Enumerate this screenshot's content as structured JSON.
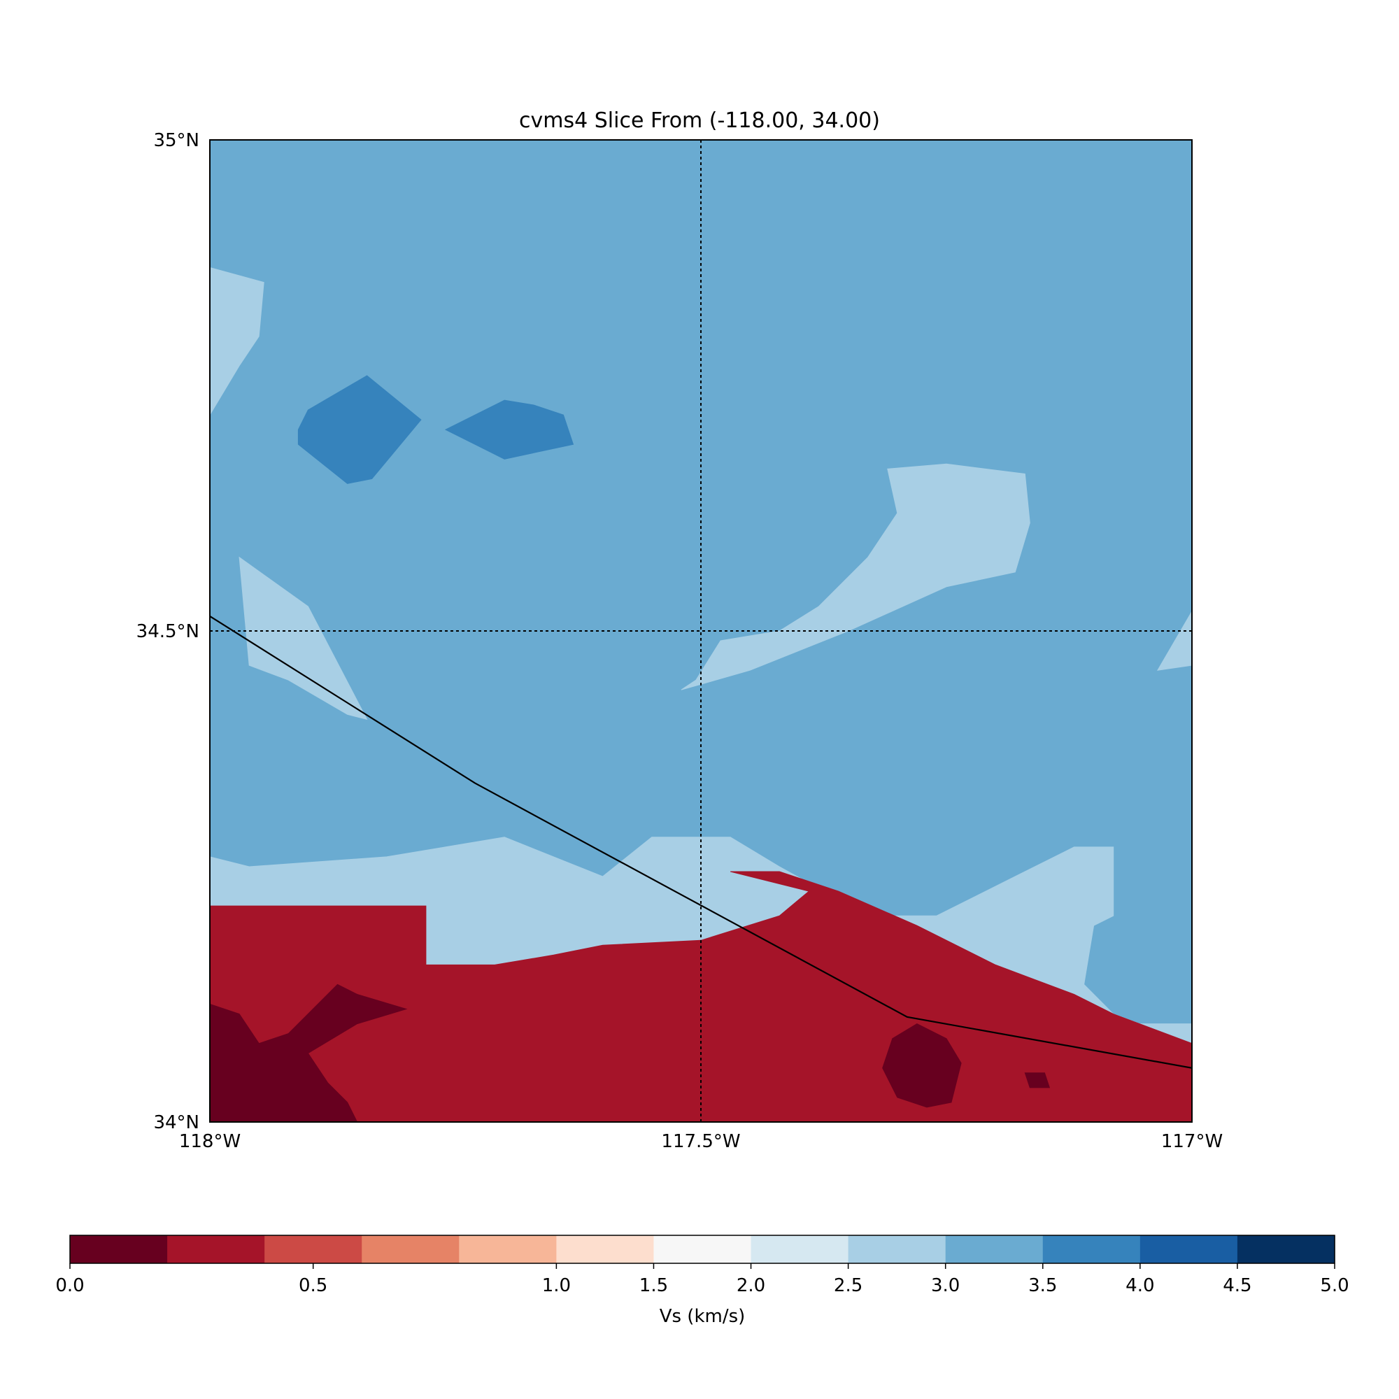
{
  "chart_data": {
    "type": "heatmap",
    "title": "cvms4 Slice From (-118.00, 34.00)",
    "x_ticks": [
      {
        "value": -118.0,
        "label": "118°W"
      },
      {
        "value": -117.5,
        "label": "117.5°W"
      },
      {
        "value": -117.0,
        "label": "117°W"
      }
    ],
    "y_ticks": [
      {
        "value": 34.0,
        "label": "34°N"
      },
      {
        "value": 34.5,
        "label": "34.5°N"
      },
      {
        "value": 35.0,
        "label": "35°N"
      }
    ],
    "xlim": [
      -118.0,
      -117.0
    ],
    "ylim": [
      34.0,
      35.0
    ],
    "gridlines": {
      "lon": [
        -117.5
      ],
      "lat": [
        34.5
      ],
      "style": "dotted"
    },
    "colorbar": {
      "label": "Vs (km/s)",
      "placement": "bottom",
      "range": [
        0.0,
        5.0
      ],
      "ticks": [
        "0.0",
        "0.5",
        "1.0",
        "1.5",
        "2.0",
        "2.5",
        "3.0",
        "3.5",
        "4.0",
        "4.5",
        "5.0"
      ],
      "tick_values": [
        0.0,
        0.5,
        1.0,
        1.5,
        2.0,
        2.5,
        3.0,
        3.5,
        4.0,
        4.5,
        5.0
      ],
      "colors": [
        "#67001f",
        "#a51429",
        "#cc4a45",
        "#e68366",
        "#f7b698",
        "#fddece",
        "#f7f7f7",
        "#d6e8f1",
        "#a8cfe5",
        "#6aabd1",
        "#3683bc",
        "#195ea3",
        "#053061"
      ]
    },
    "regions": [
      {
        "vs_class": "2.5-3.0",
        "color": "#a8cfe5",
        "polygon": [
          [
            -118.0,
            34.27
          ],
          [
            -117.96,
            34.26
          ],
          [
            -117.82,
            34.27
          ],
          [
            -117.7,
            34.29
          ],
          [
            -117.6,
            34.25
          ],
          [
            -117.55,
            34.29
          ],
          [
            -117.47,
            34.29
          ],
          [
            -117.42,
            34.26
          ],
          [
            -117.33,
            34.21
          ],
          [
            -117.26,
            34.21
          ],
          [
            -117.18,
            34.25
          ],
          [
            -117.12,
            34.28
          ],
          [
            -117.08,
            34.28
          ],
          [
            -117.08,
            34.21
          ],
          [
            -117.1,
            34.2
          ],
          [
            -117.11,
            34.14
          ],
          [
            -117.08,
            34.11
          ],
          [
            -117.0,
            34.08
          ],
          [
            -117.0,
            34.1
          ],
          [
            -117.42,
            34.1
          ],
          [
            -117.65,
            34.1
          ],
          [
            -117.78,
            34.16
          ],
          [
            -118.0,
            34.16
          ]
        ]
      },
      {
        "vs_class": "2.5-3.0",
        "color": "#a8cfe5",
        "polygon": [
          [
            -118.0,
            34.87
          ],
          [
            -117.945,
            34.855
          ],
          [
            -117.95,
            34.8
          ],
          [
            -117.97,
            34.77
          ],
          [
            -118.0,
            34.72
          ]
        ]
      },
      {
        "vs_class": "2.5-3.0",
        "color": "#a8cfe5",
        "polygon": [
          [
            -117.97,
            34.575
          ],
          [
            -117.9,
            34.525
          ],
          [
            -117.84,
            34.41
          ],
          [
            -117.86,
            34.415
          ],
          [
            -117.92,
            34.45
          ],
          [
            -117.96,
            34.465
          ]
        ]
      },
      {
        "vs_class": "2.5-3.0",
        "color": "#a8cfe5",
        "polygon": [
          [
            -117.52,
            34.44
          ],
          [
            -117.45,
            34.46
          ],
          [
            -117.35,
            34.5
          ],
          [
            -117.25,
            34.545
          ],
          [
            -117.18,
            34.56
          ],
          [
            -117.165,
            34.61
          ],
          [
            -117.17,
            34.66
          ],
          [
            -117.25,
            34.67
          ],
          [
            -117.31,
            34.665
          ],
          [
            -117.3,
            34.62
          ],
          [
            -117.33,
            34.575
          ],
          [
            -117.38,
            34.525
          ],
          [
            -117.42,
            34.5
          ],
          [
            -117.48,
            34.49
          ],
          [
            -117.505,
            34.45
          ]
        ]
      },
      {
        "vs_class": "2.5-3.0",
        "color": "#a8cfe5",
        "polygon": [
          [
            -117.0,
            34.52
          ],
          [
            -117.035,
            34.46
          ],
          [
            -117.0,
            34.465
          ]
        ]
      },
      {
        "vs_class": "3.5-4.0",
        "color": "#3683bc",
        "polygon": [
          [
            -117.91,
            34.705
          ],
          [
            -117.9,
            34.725
          ],
          [
            -117.84,
            34.76
          ],
          [
            -117.785,
            34.715
          ],
          [
            -117.835,
            34.655
          ],
          [
            -117.86,
            34.65
          ],
          [
            -117.91,
            34.69
          ]
        ]
      },
      {
        "vs_class": "3.5-4.0",
        "color": "#3683bc",
        "polygon": [
          [
            -117.76,
            34.705
          ],
          [
            -117.7,
            34.735
          ],
          [
            -117.67,
            34.73
          ],
          [
            -117.64,
            34.72
          ],
          [
            -117.63,
            34.69
          ],
          [
            -117.7,
            34.675
          ]
        ]
      },
      {
        "vs_class": "0.2-0.4",
        "color": "#a51429",
        "polygon": [
          [
            -118.0,
            34.0
          ],
          [
            -117.0,
            34.0
          ],
          [
            -117.0,
            34.08
          ],
          [
            -117.08,
            34.11
          ],
          [
            -117.12,
            34.13
          ],
          [
            -117.2,
            34.16
          ],
          [
            -117.28,
            34.2
          ],
          [
            -117.36,
            34.235
          ],
          [
            -117.42,
            34.255
          ],
          [
            -117.47,
            34.255
          ],
          [
            -117.39,
            34.235
          ],
          [
            -117.42,
            34.21
          ],
          [
            -117.5,
            34.185
          ],
          [
            -117.6,
            34.18
          ],
          [
            -117.65,
            34.17
          ],
          [
            -117.71,
            34.16
          ],
          [
            -117.78,
            34.16
          ],
          [
            -117.78,
            34.22
          ],
          [
            -118.0,
            34.22
          ]
        ]
      },
      {
        "vs_class": "0.0-0.2",
        "color": "#67001f",
        "polygon": [
          [
            -118.0,
            34.12
          ],
          [
            -117.97,
            34.11
          ],
          [
            -117.95,
            34.08
          ],
          [
            -117.92,
            34.09
          ],
          [
            -117.87,
            34.14
          ],
          [
            -117.85,
            34.13
          ],
          [
            -117.8,
            34.115
          ],
          [
            -117.85,
            34.1
          ],
          [
            -117.9,
            34.07
          ],
          [
            -117.88,
            34.04
          ],
          [
            -117.86,
            34.02
          ],
          [
            -117.85,
            34.0
          ],
          [
            -118.0,
            34.0
          ]
        ]
      },
      {
        "vs_class": "0.0-0.2",
        "color": "#67001f",
        "polygon": [
          [
            -117.28,
            34.1
          ],
          [
            -117.25,
            34.085
          ],
          [
            -117.235,
            34.06
          ],
          [
            -117.245,
            34.02
          ],
          [
            -117.27,
            34.015
          ],
          [
            -117.3,
            34.025
          ],
          [
            -117.315,
            34.055
          ],
          [
            -117.305,
            34.085
          ]
        ]
      },
      {
        "vs_class": "0.0-0.2",
        "color": "#67001f",
        "polygon": [
          [
            -117.17,
            34.05
          ],
          [
            -117.15,
            34.05
          ],
          [
            -117.145,
            34.035
          ],
          [
            -117.165,
            34.035
          ]
        ]
      }
    ],
    "fault_trace": [
      [
        -118.0,
        34.515
      ],
      [
        -117.73,
        34.345
      ],
      [
        -117.29,
        34.107
      ],
      [
        -117.0,
        34.055
      ]
    ]
  }
}
